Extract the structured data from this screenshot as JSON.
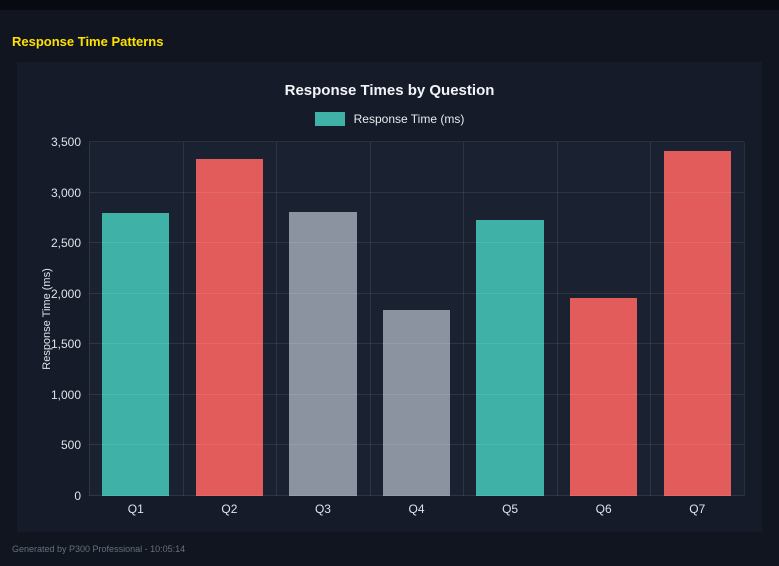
{
  "page": {
    "title": "Response Time Patterns",
    "footer": "Generated by P300 Professional - 10:05:14"
  },
  "chart_data": {
    "type": "bar",
    "title": "Response Times by Question",
    "legend": [
      {
        "label": "Response Time (ms)",
        "color": "#3fb1a7"
      }
    ],
    "legend_position": "top",
    "categories": [
      "Q1",
      "Q2",
      "Q3",
      "Q4",
      "Q5",
      "Q6",
      "Q7"
    ],
    "values": [
      2800,
      3330,
      2810,
      1840,
      2730,
      1960,
      3410
    ],
    "bar_colors": [
      "#3fb1a7",
      "#e25c5c",
      "#8c93a0",
      "#8c93a0",
      "#3fb1a7",
      "#e25c5c",
      "#e25c5c"
    ],
    "xlabel": "",
    "ylabel": "Response Time (ms)",
    "ylim": [
      0,
      3500
    ],
    "yticks": [
      0,
      500,
      1000,
      1500,
      2000,
      2500,
      3000,
      3500
    ],
    "grid": true,
    "colors": {
      "page_bg": "#10151f",
      "panel_bg": "#151b29",
      "plot_bg": "#1a2130",
      "title_accent": "#ffe100"
    }
  }
}
